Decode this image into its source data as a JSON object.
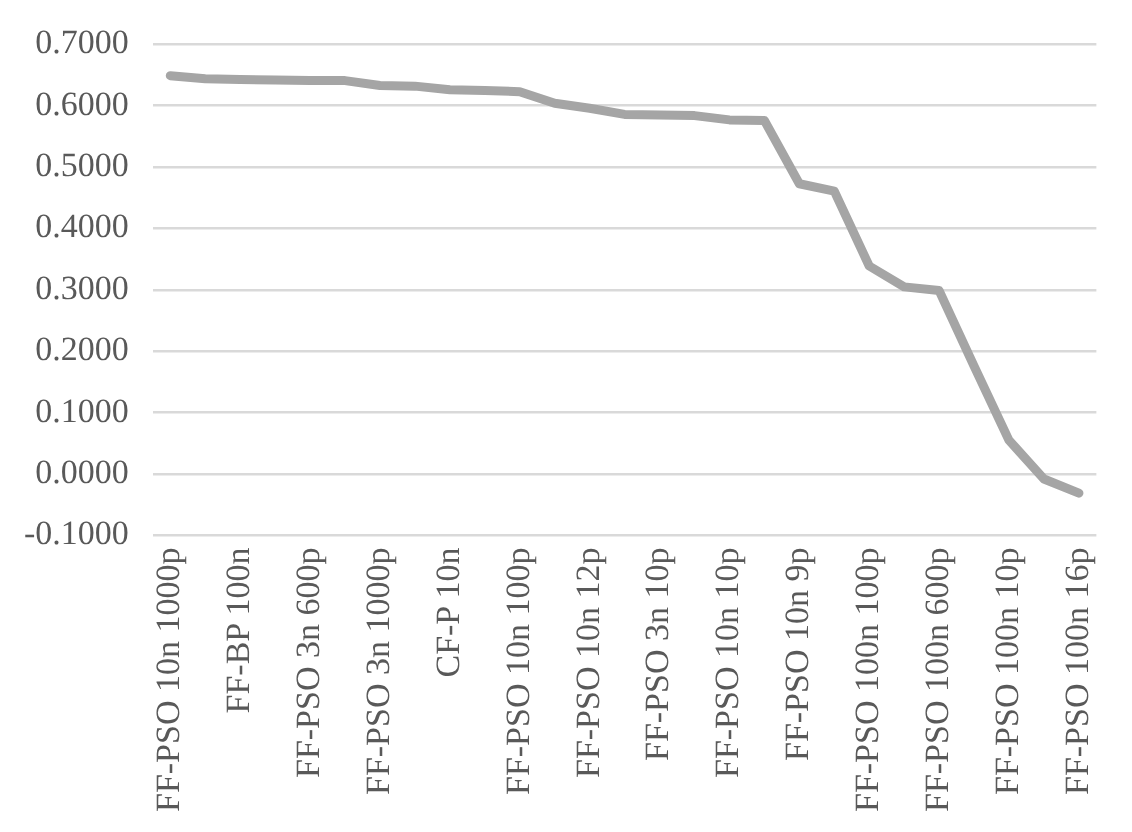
{
  "chart_data": {
    "type": "line",
    "categories": [
      "FF-PSO 10n 1000p",
      null,
      "FF-BP 100n",
      null,
      "FF-PSO 3n 600p",
      null,
      "FF-PSO 3n 1000p",
      null,
      "CF-P 10n",
      null,
      "FF-PSO 10n 100p",
      null,
      "FF-PSO 10n 12p",
      null,
      "FF-PSO 3n 10p",
      null,
      "FF-PSO 10n 10p",
      null,
      "FF-PSO 10n 9p",
      null,
      "FF-PSO 100n 100p",
      null,
      "FF-PSO 100n 600p",
      null,
      "FF-PSO 100n 10p",
      null,
      "FF-PSO 100n 16p"
    ],
    "series": [
      {
        "color": "#a5a5a5",
        "values": [
          0.649,
          0.644,
          0.643,
          0.642,
          0.641,
          0.641,
          0.633,
          0.632,
          0.626,
          0.625,
          0.623,
          0.604,
          0.596,
          0.586,
          0.585,
          0.584,
          0.577,
          0.576,
          0.473,
          0.461,
          0.339,
          0.305,
          0.299,
          0.176,
          0.055,
          -0.008,
          -0.031
        ]
      }
    ],
    "ylim": [
      -0.1,
      0.7
    ],
    "yticks": [
      {
        "value": -0.1,
        "label": "-0.1000"
      },
      {
        "value": 0,
        "label": "0.0000"
      },
      {
        "value": 0.1,
        "label": "0.1000"
      },
      {
        "value": 0.2,
        "label": "0.2000"
      },
      {
        "value": 0.3,
        "label": "0.3000"
      },
      {
        "value": 0.4,
        "label": "0.4000"
      },
      {
        "value": 0.5,
        "label": "0.5000"
      },
      {
        "value": 0.6,
        "label": "0.6000"
      },
      {
        "value": 0.7,
        "label": "0.7000"
      }
    ],
    "grid": "y",
    "legend": false,
    "marker": "none",
    "line_style": "solid"
  }
}
